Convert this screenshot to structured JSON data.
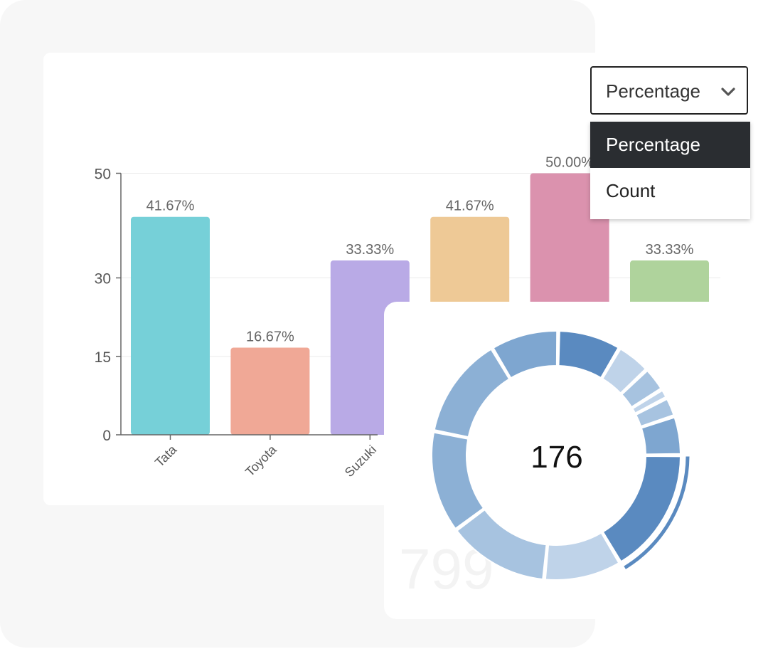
{
  "colors": {
    "bars": [
      "#76d0d8",
      "#f0a896",
      "#b9aae6",
      "#eec996",
      "#db92ae",
      "#afd39c"
    ],
    "donut_segments": [
      "#5a8ac0",
      "#bfd3e9",
      "#a7c3e0",
      "#bfd3e9",
      "#a7c3e0",
      "#7ea6d0",
      "#5a8ac0",
      "#5a8ac0",
      "#bfd3e9",
      "#a7c3e0",
      "#8cb0d5",
      "#8cb0d5",
      "#7ea6d0"
    ],
    "selected_bg": "#2a2d31"
  },
  "controls": {
    "metric_dropdown": {
      "value": "Percentage",
      "options": [
        "Percentage",
        "Count"
      ],
      "selected_index": 0,
      "icon": "chevron-down-icon"
    }
  },
  "chart_data": [
    {
      "type": "bar",
      "categories": [
        "Tata",
        "Toyota",
        "Suzuki",
        "",
        "",
        ""
      ],
      "values": [
        41.67,
        16.67,
        33.33,
        41.67,
        50.0,
        33.33
      ],
      "data_labels": [
        "41.67%",
        "16.67%",
        "33.33%",
        "41.67%",
        "50.00%",
        "33.33%"
      ],
      "yticks": [
        "50",
        "30",
        "15",
        "0"
      ],
      "ytick_values": [
        50,
        30,
        15,
        0
      ],
      "ylim": [
        0,
        50
      ],
      "grid": true,
      "title": "",
      "xlabel": "",
      "ylabel": ""
    },
    {
      "type": "pie",
      "variant": "donut",
      "center_label": "176",
      "values": [
        13,
        7,
        5,
        2,
        4,
        8,
        26,
        0,
        16,
        21,
        21,
        21,
        14
      ],
      "highlighted_segment": 6,
      "background_number": "799"
    }
  ]
}
